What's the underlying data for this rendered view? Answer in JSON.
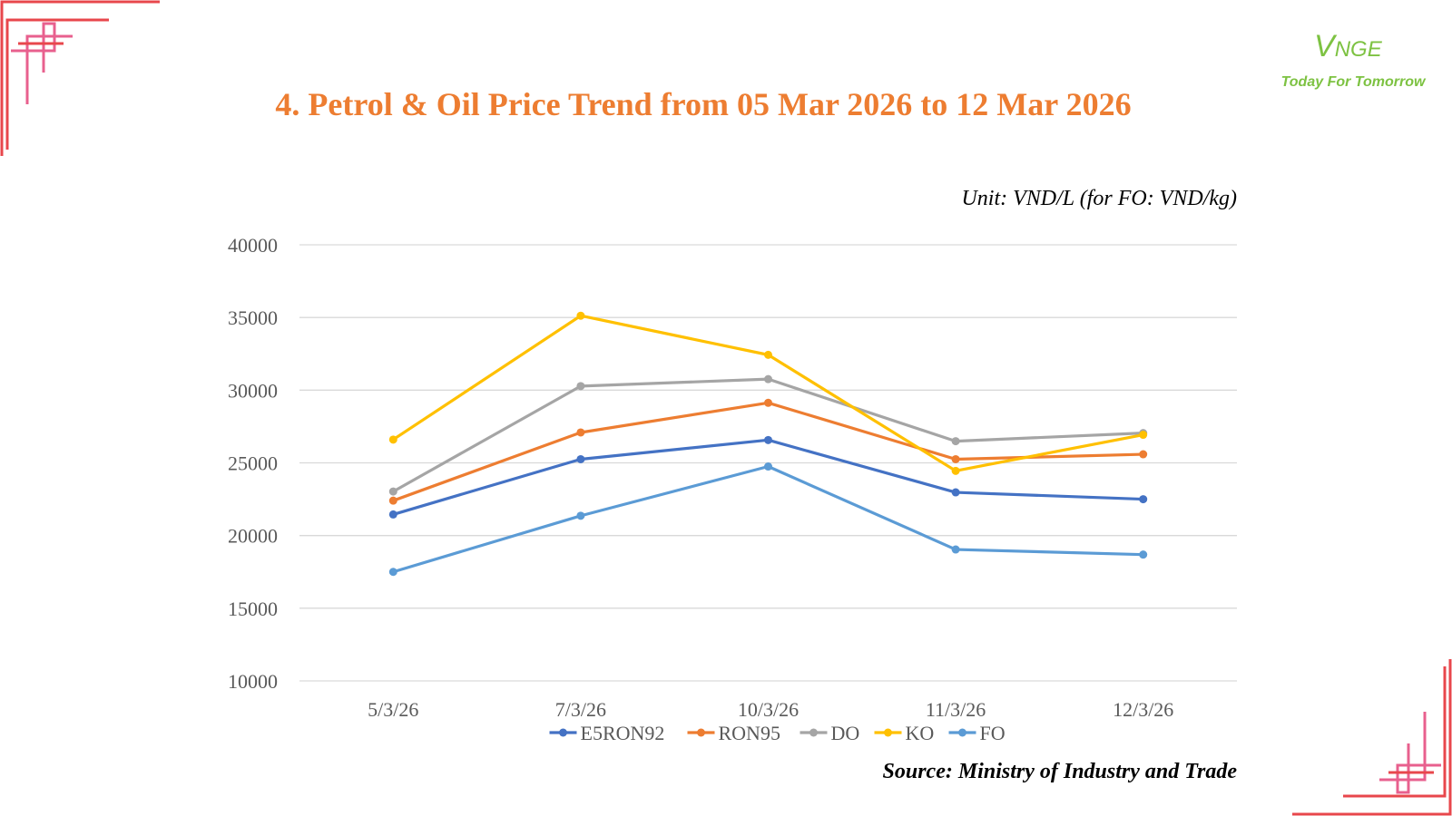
{
  "slide": {
    "title": "4. Petrol & Oil Price Trend from 05 Mar 2026 to 12 Mar 2026",
    "unit_note": "Unit: VND/L (for FO: VND/kg)",
    "source": "Source: Ministry of Industry and Trade",
    "logo": {
      "letter": "V",
      "rest": "NGE",
      "tagline": "Today For Tomorrow",
      "color": "#7DC242"
    },
    "accent_colors": {
      "corner_red": "#E8474C",
      "corner_pink": "#E8608E",
      "title": "#ED7D31"
    }
  },
  "chart_data": {
    "type": "line",
    "title": "",
    "xlabel": "",
    "ylabel": "",
    "categories": [
      "5/3/26",
      "7/3/26",
      "10/3/26",
      "11/3/26",
      "12/3/26"
    ],
    "ylim": [
      10000,
      40000
    ],
    "yticks": [
      10000,
      15000,
      20000,
      25000,
      30000,
      35000,
      40000
    ],
    "grid": true,
    "legend_position": "bottom",
    "series": [
      {
        "name": "E5RON92",
        "color": "#4472C4",
        "values": [
          21450,
          25250,
          26570,
          22970,
          22500
        ]
      },
      {
        "name": "RON95",
        "color": "#ED7D31",
        "values": [
          22400,
          27090,
          29130,
          25250,
          25590
        ]
      },
      {
        "name": "DO",
        "color": "#A5A5A5",
        "values": [
          23030,
          30280,
          30760,
          26490,
          27050
        ]
      },
      {
        "name": "KO",
        "color": "#FFC000",
        "values": [
          26600,
          35120,
          32430,
          24450,
          26930
        ]
      },
      {
        "name": "FO",
        "color": "#5B9BD5",
        "values": [
          17500,
          21360,
          24750,
          19040,
          18690
        ]
      }
    ]
  }
}
